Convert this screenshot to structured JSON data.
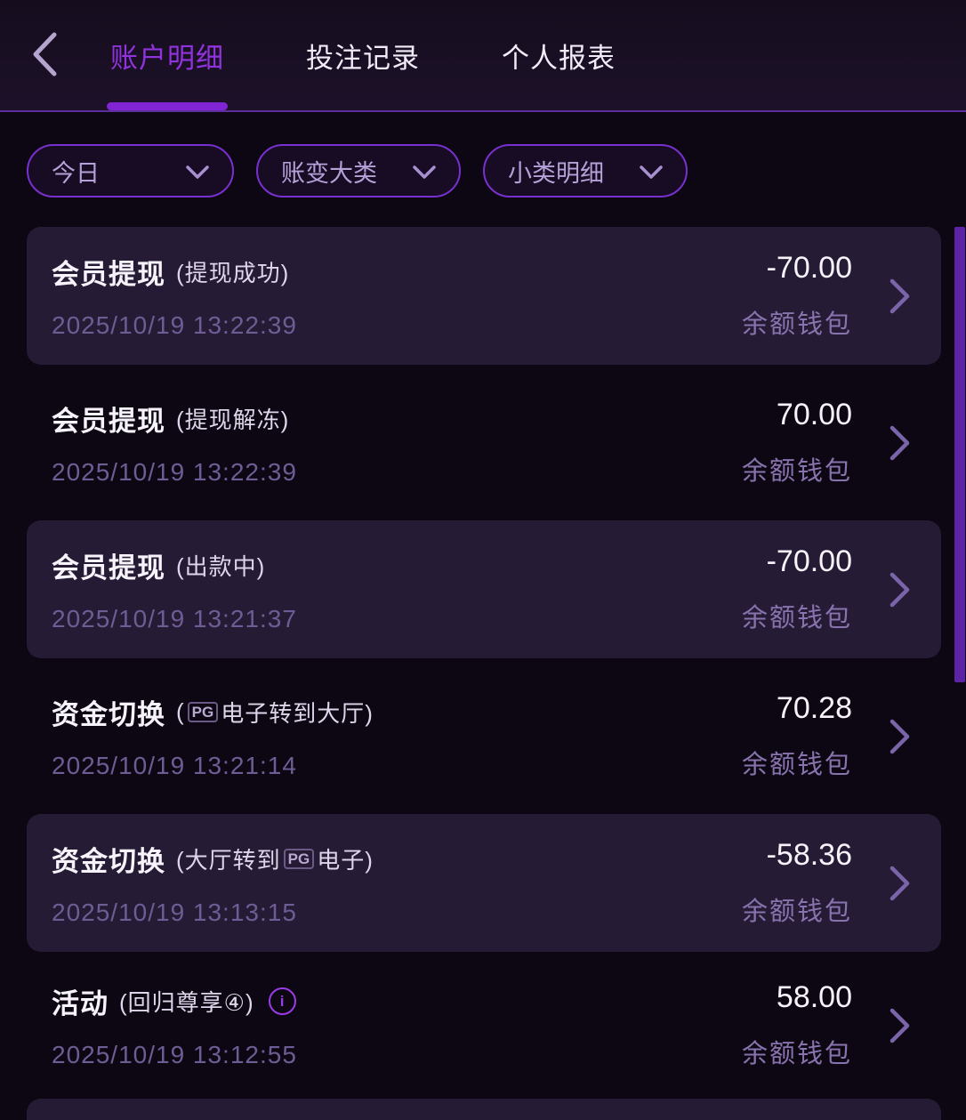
{
  "header": {
    "back_icon": "chevron-left",
    "tabs": [
      {
        "key": "account-details",
        "label": "账户明细",
        "active": true
      },
      {
        "key": "bet-records",
        "label": "投注记录",
        "active": false
      },
      {
        "key": "personal-reports",
        "label": "个人报表",
        "active": false
      }
    ]
  },
  "filters": [
    {
      "key": "date-range",
      "label": "今日"
    },
    {
      "key": "category",
      "label": "账变大类"
    },
    {
      "key": "subcategory",
      "label": "小类明细"
    }
  ],
  "list": {
    "items": [
      {
        "title": "会员提现",
        "sub_before": "(提现成功)",
        "pg_badge": "",
        "sub_after": "",
        "info": false,
        "date": "2025/10/19 13:22:39",
        "amount": "-70.00",
        "wallet": "余额钱包",
        "highlight": true
      },
      {
        "title": "会员提现",
        "sub_before": "(提现解冻)",
        "pg_badge": "",
        "sub_after": "",
        "info": false,
        "date": "2025/10/19 13:22:39",
        "amount": "70.00",
        "wallet": "余额钱包",
        "highlight": false
      },
      {
        "title": "会员提现",
        "sub_before": "(出款中)",
        "pg_badge": "",
        "sub_after": "",
        "info": false,
        "date": "2025/10/19 13:21:37",
        "amount": "-70.00",
        "wallet": "余额钱包",
        "highlight": true
      },
      {
        "title": "资金切换",
        "sub_before": "(",
        "pg_badge": "PG",
        "sub_after": "电子转到大厅)",
        "info": false,
        "date": "2025/10/19 13:21:14",
        "amount": "70.28",
        "wallet": "余额钱包",
        "highlight": false
      },
      {
        "title": "资金切换",
        "sub_before": "(大厅转到",
        "pg_badge": "PG",
        "sub_after": "电子)",
        "info": false,
        "date": "2025/10/19 13:13:15",
        "amount": "-58.36",
        "wallet": "余额钱包",
        "highlight": true
      },
      {
        "title": "活动",
        "sub_before": "(回归尊享④)",
        "pg_badge": "",
        "sub_after": "",
        "info": true,
        "date": "2025/10/19 13:12:55",
        "amount": "58.00",
        "wallet": "余额钱包",
        "highlight": false
      }
    ],
    "partial_next_item": true
  },
  "colors": {
    "page_bg": "#0d0714",
    "header_bg": "#1d1129",
    "card_bg": "#261b35",
    "accent_purple": "#8b2ed9",
    "tab_active": "#9133dc",
    "tab_underline": "#8125d4",
    "pill_border": "#7830cf",
    "muted_purple_text": "#8973ae",
    "date_text": "#6e5d94",
    "scrollbar": "#5c23a6",
    "info_icon": "#9a3be8"
  }
}
